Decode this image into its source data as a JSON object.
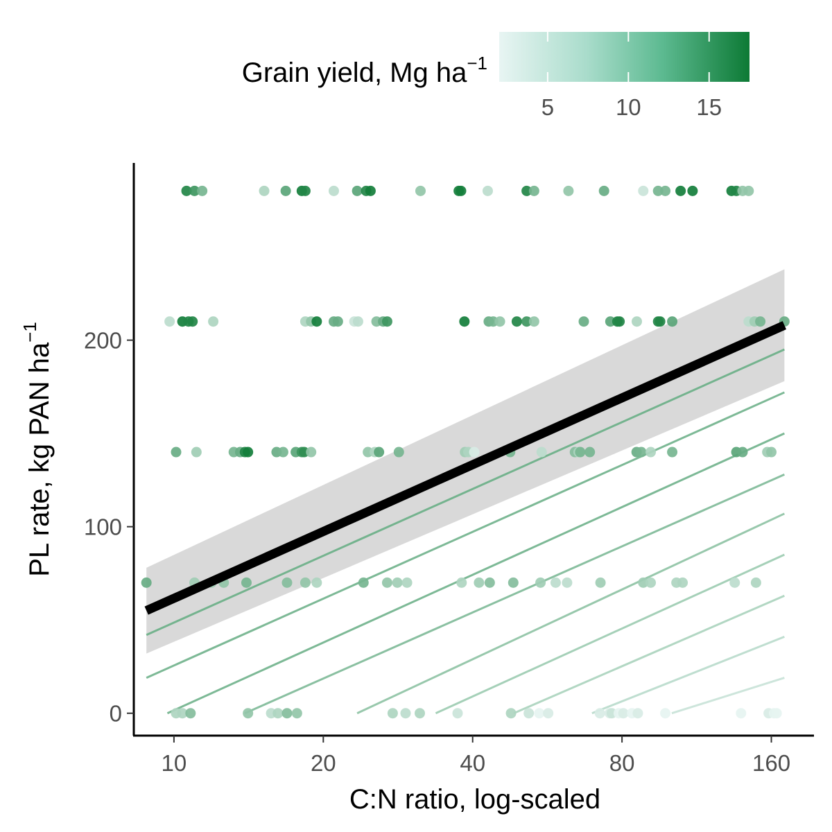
{
  "chart_data": {
    "type": "scatter",
    "title": "",
    "xlabel": "C:N ratio, log-scaled",
    "ylabel_main": "PL rate, kg PAN ha",
    "ylabel_sup": "−1",
    "x_scale": "log2",
    "xlim": [
      8.3,
      195
    ],
    "ylim": [
      -12,
      295
    ],
    "x_ticks": [
      10,
      20,
      40,
      80,
      160
    ],
    "x_tick_labels": [
      "10",
      "20",
      "40",
      "80",
      "160"
    ],
    "y_ticks": [
      0,
      100,
      200
    ],
    "y_tick_labels": [
      "0",
      "100",
      "200"
    ],
    "grid": false,
    "legend": {
      "position": "top",
      "title_main": "Grain yield, Mg ha",
      "title_sup": "−1",
      "range": [
        2,
        17.5
      ],
      "ticks": [
        5,
        10,
        15
      ],
      "tick_labels": [
        "5",
        "10",
        "15"
      ],
      "color_low": "#e6f4f1",
      "color_high": "#0d7a35"
    },
    "colors": {
      "low": "#e6f4f1",
      "high": "#0d7a35",
      "trend": "#000000",
      "band": "#d9d9d9"
    },
    "trend": {
      "x": [
        8.8,
        170
      ],
      "y": [
        55,
        208
      ],
      "ci_low": [
        32,
        178
      ],
      "ci_high": [
        78,
        238
      ]
    },
    "contours": [
      {
        "yield": 10.5,
        "x": [
          8.8,
          170
        ],
        "y": [
          42,
          195
        ]
      },
      {
        "yield": 10,
        "x": [
          8.8,
          170
        ],
        "y": [
          19,
          172
        ]
      },
      {
        "yield": 10,
        "x": [
          9.7,
          170
        ],
        "y": [
          0,
          150
        ]
      },
      {
        "yield": 9,
        "x": [
          13.9,
          170
        ],
        "y": [
          0,
          128
        ]
      },
      {
        "yield": 8,
        "x": [
          23.4,
          170
        ],
        "y": [
          0,
          107
        ]
      },
      {
        "yield": 7,
        "x": [
          33.7,
          170
        ],
        "y": [
          0,
          85
        ]
      },
      {
        "yield": 6,
        "x": [
          48.4,
          170
        ],
        "y": [
          0,
          63
        ]
      },
      {
        "yield": 5,
        "x": [
          69.6,
          170
        ],
        "y": [
          0,
          41
        ]
      },
      {
        "yield": 4,
        "x": [
          100.8,
          170
        ],
        "y": [
          0,
          19
        ]
      }
    ],
    "series": [
      {
        "y": 280,
        "points": [
          [
            10.6,
            16
          ],
          [
            11,
            14
          ],
          [
            11.4,
            10
          ],
          [
            15.2,
            6
          ],
          [
            16.8,
            12
          ],
          [
            18.1,
            17
          ],
          [
            18.4,
            16
          ],
          [
            21,
            5
          ],
          [
            23.4,
            12
          ],
          [
            24.4,
            16
          ],
          [
            24.9,
            17
          ],
          [
            31.4,
            8
          ],
          [
            37.5,
            17
          ],
          [
            37.9,
            17
          ],
          [
            42.9,
            5
          ],
          [
            51.4,
            16
          ],
          [
            53.2,
            10
          ],
          [
            62.4,
            8
          ],
          [
            73.6,
            11
          ],
          [
            88.3,
            4
          ],
          [
            94.6,
            10
          ],
          [
            97.8,
            10
          ],
          [
            105,
            17
          ],
          [
            111,
            17
          ],
          [
            133,
            17
          ],
          [
            136,
            16
          ],
          [
            140,
            8
          ],
          [
            144,
            8
          ]
        ]
      },
      {
        "y": 210,
        "points": [
          [
            9.8,
            5
          ],
          [
            10.4,
            17
          ],
          [
            10.7,
            16
          ],
          [
            10.9,
            16
          ],
          [
            12,
            6
          ],
          [
            18.4,
            6
          ],
          [
            18.9,
            8
          ],
          [
            19.4,
            17
          ],
          [
            21,
            11
          ],
          [
            21.4,
            11
          ],
          [
            23.1,
            4
          ],
          [
            23.5,
            5
          ],
          [
            25.6,
            9
          ],
          [
            26.4,
            11
          ],
          [
            26.9,
            14
          ],
          [
            38.5,
            17
          ],
          [
            43.1,
            11
          ],
          [
            44,
            10
          ],
          [
            45.4,
            8
          ],
          [
            49.1,
            16
          ],
          [
            51.4,
            14
          ],
          [
            53.2,
            8
          ],
          [
            67,
            11
          ],
          [
            75.8,
            12
          ],
          [
            78.3,
            16
          ],
          [
            79.1,
            16
          ],
          [
            85.7,
            6
          ],
          [
            94.6,
            16
          ],
          [
            95.5,
            16
          ],
          [
            101,
            12
          ],
          [
            144,
            5
          ],
          [
            148,
            7
          ],
          [
            152,
            10
          ],
          [
            170,
            11
          ]
        ]
      },
      {
        "y": 140,
        "points": [
          [
            10.1,
            11
          ],
          [
            11.1,
            7
          ],
          [
            13.2,
            10
          ],
          [
            13.6,
            11
          ],
          [
            13.9,
            16
          ],
          [
            14.1,
            17
          ],
          [
            16.1,
            11
          ],
          [
            16.6,
            10
          ],
          [
            17.6,
            12
          ],
          [
            18.1,
            14
          ],
          [
            18.3,
            15
          ],
          [
            18.9,
            8
          ],
          [
            24.6,
            8
          ],
          [
            25.4,
            6
          ],
          [
            25.9,
            12
          ],
          [
            28.4,
            10
          ],
          [
            38.6,
            7
          ],
          [
            39.2,
            6
          ],
          [
            40.3,
            3
          ],
          [
            47.6,
            10
          ],
          [
            55.1,
            5
          ],
          [
            64.3,
            9
          ],
          [
            65.4,
            6
          ],
          [
            65.9,
            10
          ],
          [
            68.9,
            10
          ],
          [
            85.6,
            11
          ],
          [
            87.5,
            10
          ],
          [
            91.4,
            6
          ],
          [
            101,
            10
          ],
          [
            136,
            12
          ],
          [
            140,
            11
          ],
          [
            157,
            7
          ],
          [
            160,
            8
          ]
        ]
      },
      {
        "y": 70,
        "points": [
          [
            8.8,
            11
          ],
          [
            11,
            7
          ],
          [
            11.9,
            7
          ],
          [
            12.6,
            8
          ],
          [
            14,
            10
          ],
          [
            16.9,
            9
          ],
          [
            18.4,
            8
          ],
          [
            19.4,
            6
          ],
          [
            24.1,
            10
          ],
          [
            26.9,
            8
          ],
          [
            28.2,
            7
          ],
          [
            29.5,
            6
          ],
          [
            38,
            6
          ],
          [
            41.2,
            7
          ],
          [
            43.3,
            9
          ],
          [
            48.3,
            9
          ],
          [
            54.8,
            7
          ],
          [
            58.8,
            5
          ],
          [
            62,
            5
          ],
          [
            72.4,
            7
          ],
          [
            88.3,
            7
          ],
          [
            91.4,
            6
          ],
          [
            103,
            6
          ],
          [
            106,
            6
          ],
          [
            135,
            5
          ],
          [
            149,
            6
          ]
        ]
      },
      {
        "y": 0,
        "points": [
          [
            10.1,
            6
          ],
          [
            10.4,
            6
          ],
          [
            10.8,
            9
          ],
          [
            14.1,
            8
          ],
          [
            15.7,
            5
          ],
          [
            16.2,
            6
          ],
          [
            16.9,
            9
          ],
          [
            17.7,
            8
          ],
          [
            27.6,
            6
          ],
          [
            29.3,
            5
          ],
          [
            31.3,
            6
          ],
          [
            37.3,
            4
          ],
          [
            47.8,
            6
          ],
          [
            51.9,
            4
          ],
          [
            54.5,
            2
          ],
          [
            56.8,
            3
          ],
          [
            72.2,
            3
          ],
          [
            75.6,
            3
          ],
          [
            76.3,
            4
          ],
          [
            78.8,
            2
          ],
          [
            80.5,
            3
          ],
          [
            83.8,
            2
          ],
          [
            86.1,
            3
          ],
          [
            97.8,
            2
          ],
          [
            139,
            2
          ],
          [
            158,
            3
          ],
          [
            162,
            2
          ],
          [
            164,
            2
          ]
        ]
      }
    ]
  }
}
